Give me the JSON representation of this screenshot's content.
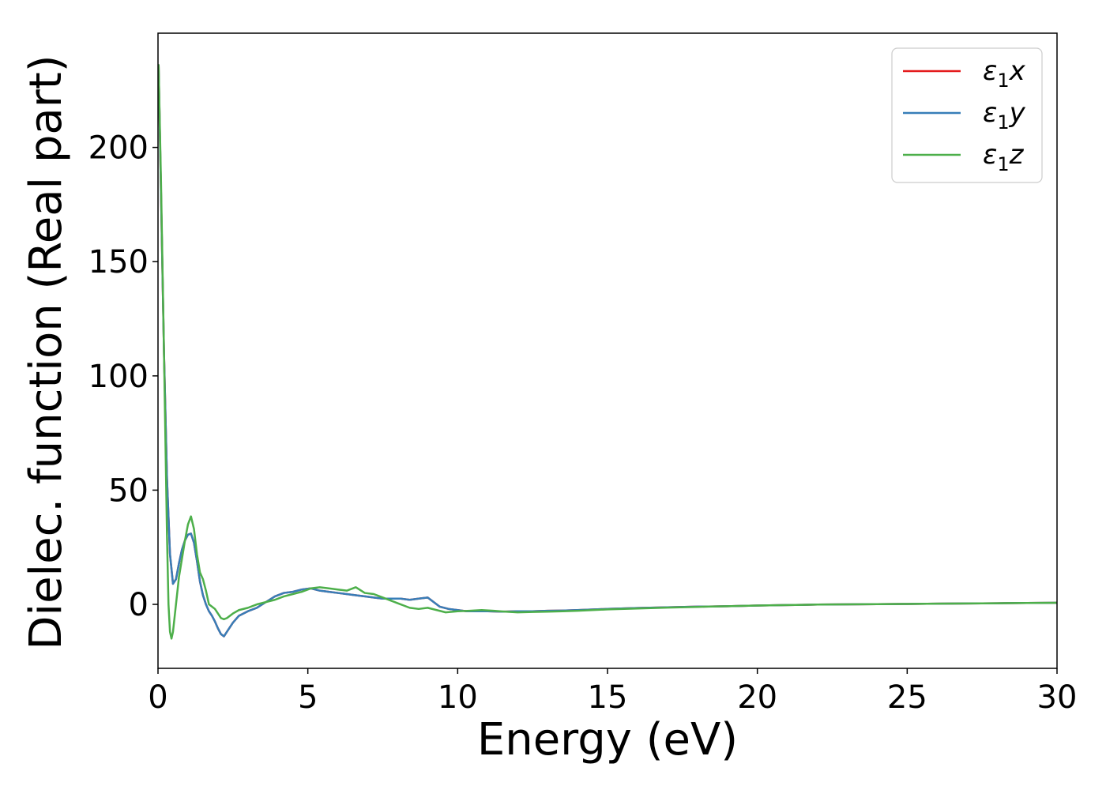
{
  "chart_data": {
    "type": "line",
    "xlabel": "Energy (eV)",
    "ylabel": "Dielec. function (Real part)",
    "xlim": [
      0,
      30
    ],
    "ylim": [
      -28,
      250
    ],
    "xticks": [
      0,
      5,
      10,
      15,
      20,
      25,
      30
    ],
    "yticks": [
      0,
      50,
      100,
      150,
      200
    ],
    "grid": false,
    "legend_position": "top-right",
    "series": [
      {
        "name": "ε1x",
        "legend_main": "ε",
        "legend_sub": "1",
        "legend_suffix": "x",
        "color": "#e41a1c",
        "x": [
          0.02,
          0.1,
          0.2,
          0.3,
          0.4,
          0.5,
          0.6,
          0.7,
          0.8,
          0.9,
          1.0,
          1.1,
          1.2,
          1.3,
          1.4,
          1.5,
          1.6,
          1.7,
          1.8,
          1.9,
          2.0,
          2.1,
          2.2,
          2.3,
          2.5,
          2.7,
          3.0,
          3.3,
          3.6,
          3.9,
          4.2,
          4.5,
          4.8,
          5.1,
          5.4,
          5.7,
          6.0,
          6.3,
          6.6,
          6.9,
          7.2,
          7.5,
          7.8,
          8.1,
          8.4,
          8.7,
          9.0,
          9.2,
          9.4,
          9.7,
          10.0,
          10.3,
          10.6,
          11.0,
          11.5,
          12.0,
          12.5,
          13.0,
          13.5,
          14.0,
          15.0,
          16.0,
          17.0,
          18.0,
          19.0,
          20.0,
          21.0,
          22.0,
          23.0,
          24.0,
          25.0,
          26.0,
          27.0,
          28.0,
          29.0,
          30.0
        ],
        "y": [
          236,
          180,
          110,
          55,
          22,
          9,
          11,
          18,
          24,
          28,
          30.5,
          31,
          27,
          19,
          10,
          4,
          0,
          -3,
          -5,
          -7.5,
          -10.5,
          -13,
          -14,
          -12,
          -8,
          -5,
          -3,
          -1.5,
          1,
          3.5,
          5,
          5.5,
          6.5,
          7,
          6,
          5.5,
          5,
          4.5,
          4,
          3.5,
          3,
          2.5,
          2.5,
          2.5,
          2,
          2.5,
          3,
          1,
          -1,
          -2,
          -2.5,
          -3,
          -3,
          -3,
          -3.2,
          -3,
          -3,
          -2.8,
          -2.7,
          -2.5,
          -2,
          -1.6,
          -1.3,
          -1,
          -0.8,
          -0.5,
          -0.3,
          -0.1,
          0,
          0.1,
          0.2,
          0.3,
          0.4,
          0.5,
          0.6,
          0.7
        ]
      },
      {
        "name": "ε1y",
        "legend_main": "ε",
        "legend_sub": "1",
        "legend_suffix": "y",
        "color": "#377eb8",
        "x": [
          0.02,
          0.1,
          0.2,
          0.3,
          0.4,
          0.5,
          0.6,
          0.7,
          0.8,
          0.9,
          1.0,
          1.1,
          1.2,
          1.3,
          1.4,
          1.5,
          1.6,
          1.7,
          1.8,
          1.9,
          2.0,
          2.1,
          2.2,
          2.3,
          2.5,
          2.7,
          3.0,
          3.3,
          3.6,
          3.9,
          4.2,
          4.5,
          4.8,
          5.1,
          5.4,
          5.7,
          6.0,
          6.3,
          6.6,
          6.9,
          7.2,
          7.5,
          7.8,
          8.1,
          8.4,
          8.7,
          9.0,
          9.2,
          9.4,
          9.7,
          10.0,
          10.3,
          10.6,
          11.0,
          11.5,
          12.0,
          12.5,
          13.0,
          13.5,
          14.0,
          15.0,
          16.0,
          17.0,
          18.0,
          19.0,
          20.0,
          21.0,
          22.0,
          23.0,
          24.0,
          25.0,
          26.0,
          27.0,
          28.0,
          29.0,
          30.0
        ],
        "y": [
          236,
          180,
          110,
          55,
          22,
          9,
          11,
          18,
          24,
          28,
          30.5,
          31,
          27,
          19,
          10,
          4,
          0,
          -3,
          -5,
          -7.5,
          -10.5,
          -13,
          -14,
          -12,
          -8,
          -5,
          -3,
          -1.5,
          1,
          3.5,
          5,
          5.5,
          6.5,
          7,
          6,
          5.5,
          5,
          4.5,
          4,
          3.5,
          3,
          2.5,
          2.5,
          2.5,
          2,
          2.5,
          3,
          1,
          -1,
          -2,
          -2.5,
          -3,
          -3,
          -3,
          -3.2,
          -3,
          -3,
          -2.8,
          -2.7,
          -2.5,
          -2,
          -1.6,
          -1.3,
          -1,
          -0.8,
          -0.5,
          -0.3,
          -0.1,
          0,
          0.1,
          0.2,
          0.3,
          0.4,
          0.5,
          0.6,
          0.7
        ]
      },
      {
        "name": "ε1z",
        "legend_main": "ε",
        "legend_sub": "1",
        "legend_suffix": "z",
        "color": "#4daf4a",
        "x": [
          0.02,
          0.1,
          0.2,
          0.3,
          0.35,
          0.4,
          0.45,
          0.5,
          0.6,
          0.7,
          0.8,
          0.9,
          1.0,
          1.1,
          1.2,
          1.3,
          1.4,
          1.5,
          1.6,
          1.7,
          1.8,
          1.9,
          2.0,
          2.1,
          2.2,
          2.3,
          2.5,
          2.7,
          3.0,
          3.3,
          3.6,
          3.9,
          4.2,
          4.5,
          4.8,
          5.1,
          5.4,
          5.7,
          6.0,
          6.3,
          6.6,
          6.9,
          7.2,
          7.5,
          7.8,
          8.1,
          8.4,
          8.7,
          9.0,
          9.3,
          9.6,
          10.0,
          10.4,
          10.8,
          11.2,
          11.6,
          12.0,
          12.5,
          13.0,
          13.5,
          14.0,
          15.0,
          16.0,
          17.0,
          18.0,
          19.0,
          20.0,
          21.0,
          22.0,
          23.0,
          24.0,
          25.0,
          26.0,
          27.0,
          28.0,
          29.0,
          30.0
        ],
        "y": [
          236,
          185,
          110,
          30,
          0,
          -12,
          -15,
          -12,
          0,
          12,
          20,
          28,
          35,
          38.5,
          33,
          22,
          14,
          11,
          6,
          0,
          -1,
          -2,
          -4,
          -6,
          -6.5,
          -6,
          -4,
          -2.5,
          -1.5,
          0,
          1,
          2,
          3.5,
          4.5,
          5.5,
          7,
          7.5,
          7,
          6.5,
          6,
          7.5,
          5,
          4.5,
          3,
          1.5,
          0,
          -1.5,
          -2,
          -1.5,
          -2.5,
          -3.5,
          -3,
          -2.8,
          -2.5,
          -2.8,
          -3.2,
          -3.5,
          -3.3,
          -3.2,
          -3,
          -2.8,
          -2.2,
          -1.8,
          -1.4,
          -1.1,
          -0.8,
          -0.5,
          -0.3,
          -0.1,
          0,
          0.1,
          0.2,
          0.3,
          0.4,
          0.5,
          0.6,
          0.7
        ]
      }
    ]
  }
}
